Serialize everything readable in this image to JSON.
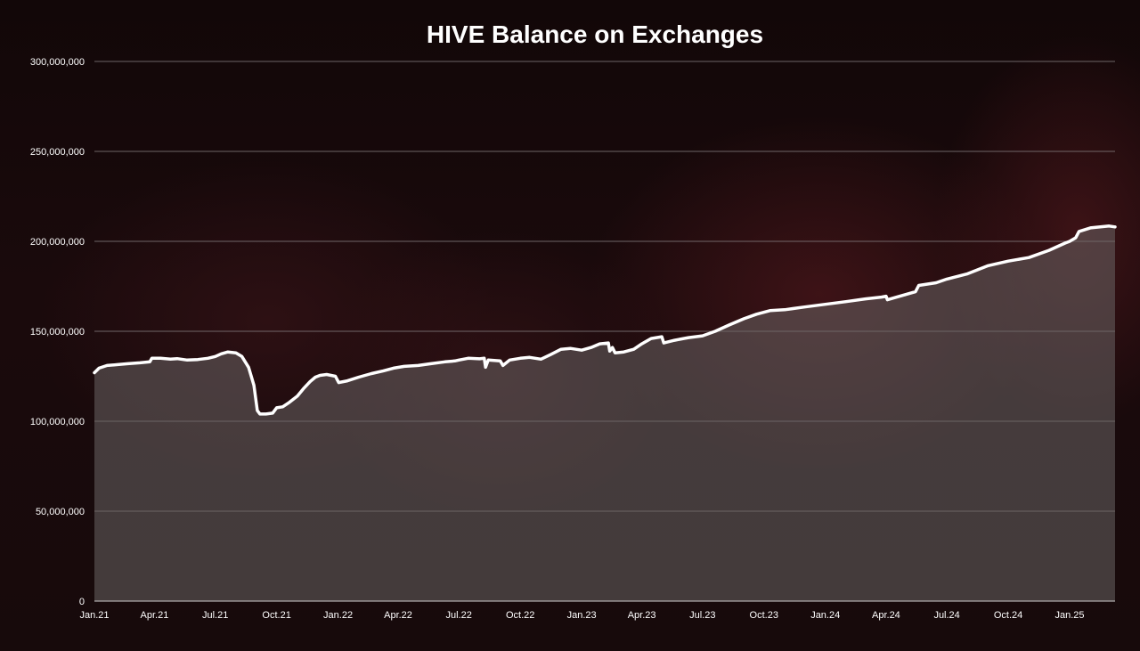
{
  "chart_data": {
    "type": "area",
    "title": "HIVE Balance on Exchanges",
    "xlabel": "",
    "ylabel": "",
    "x_range": [
      "2021-01-01",
      "2025-03-10"
    ],
    "ylim": [
      0,
      300000000
    ],
    "y_ticks": [
      0,
      50000000,
      100000000,
      150000000,
      200000000,
      250000000,
      300000000
    ],
    "y_tick_labels": [
      "0",
      "50,000,000",
      "100,000,000",
      "150,000,000",
      "200,000,000",
      "250,000,000",
      "300,000,000"
    ],
    "x_ticks": [
      "2021-01-01",
      "2021-04-01",
      "2021-07-01",
      "2021-10-01",
      "2022-01-01",
      "2022-04-01",
      "2022-07-01",
      "2022-10-01",
      "2023-01-01",
      "2023-04-01",
      "2023-07-01",
      "2023-10-01",
      "2024-01-01",
      "2024-04-01",
      "2024-07-01",
      "2024-10-01",
      "2025-01-01"
    ],
    "x_tick_labels": [
      "Jan.21",
      "Apr.21",
      "Jul.21",
      "Oct.21",
      "Jan.22",
      "Apr.22",
      "Jul.22",
      "Oct.22",
      "Jan.23",
      "Apr.23",
      "Jul.23",
      "Oct.23",
      "Jan.24",
      "Apr.24",
      "Jul.24",
      "Oct.24",
      "Jan.25"
    ],
    "grid": true,
    "legend": "none",
    "colors": {
      "line": "#ffffff",
      "area": "#6a6465",
      "grid": "#8a8486",
      "background": "#170a0b"
    },
    "series": [
      {
        "x": [
          "2021-01-01",
          "2021-01-08",
          "2021-01-20",
          "2021-02-05",
          "2021-02-20",
          "2021-03-10",
          "2021-03-25",
          "2021-03-28",
          "2021-04-10",
          "2021-04-25",
          "2021-05-05",
          "2021-05-20",
          "2021-06-05",
          "2021-06-20",
          "2021-07-01",
          "2021-07-10",
          "2021-07-20",
          "2021-08-01",
          "2021-08-10",
          "2021-08-20",
          "2021-08-28",
          "2021-09-02",
          "2021-09-06",
          "2021-09-15",
          "2021-09-25",
          "2021-10-01",
          "2021-10-10",
          "2021-10-20",
          "2021-11-01",
          "2021-11-10",
          "2021-11-20",
          "2021-11-28",
          "2021-12-05",
          "2021-12-15",
          "2021-12-28",
          "2022-01-02",
          "2022-01-15",
          "2022-02-01",
          "2022-02-20",
          "2022-03-10",
          "2022-03-25",
          "2022-04-10",
          "2022-05-01",
          "2022-05-20",
          "2022-06-10",
          "2022-06-25",
          "2022-07-01",
          "2022-07-15",
          "2022-08-01",
          "2022-08-08",
          "2022-08-10",
          "2022-08-14",
          "2022-09-01",
          "2022-09-05",
          "2022-09-15",
          "2022-10-01",
          "2022-10-15",
          "2022-11-01",
          "2022-11-15",
          "2022-12-01",
          "2022-12-15",
          "2023-01-01",
          "2023-01-15",
          "2023-01-28",
          "2023-02-10",
          "2023-02-12",
          "2023-02-16",
          "2023-02-20",
          "2023-03-05",
          "2023-03-20",
          "2023-04-01",
          "2023-04-15",
          "2023-05-01",
          "2023-05-04",
          "2023-05-20",
          "2023-06-10",
          "2023-07-01",
          "2023-07-20",
          "2023-08-10",
          "2023-09-01",
          "2023-09-20",
          "2023-10-10",
          "2023-11-01",
          "2023-12-01",
          "2024-01-01",
          "2024-02-01",
          "2024-03-01",
          "2024-03-25",
          "2024-04-01",
          "2024-04-03",
          "2024-05-01",
          "2024-05-15",
          "2024-05-20",
          "2024-06-15",
          "2024-07-01",
          "2024-08-01",
          "2024-09-01",
          "2024-10-01",
          "2024-11-01",
          "2024-12-01",
          "2024-12-25",
          "2025-01-01",
          "2025-01-10",
          "2025-01-15",
          "2025-02-01",
          "2025-03-01",
          "2025-03-10"
        ],
        "values": [
          127000000,
          129500000,
          131000000,
          131500000,
          132000000,
          132500000,
          133000000,
          135000000,
          135000000,
          134500000,
          134800000,
          134000000,
          134300000,
          135000000,
          136000000,
          137500000,
          138500000,
          138000000,
          136000000,
          130000000,
          120000000,
          106000000,
          104000000,
          104000000,
          104500000,
          107500000,
          108000000,
          110500000,
          114000000,
          118000000,
          122000000,
          124500000,
          125500000,
          126000000,
          125000000,
          121500000,
          122500000,
          124500000,
          126500000,
          128000000,
          129500000,
          130500000,
          131000000,
          132000000,
          133000000,
          133500000,
          134000000,
          135000000,
          134700000,
          135000000,
          130000000,
          134000000,
          133500000,
          131000000,
          134000000,
          135000000,
          135500000,
          134500000,
          137000000,
          140000000,
          140500000,
          139500000,
          141000000,
          143000000,
          143500000,
          139000000,
          141000000,
          138000000,
          138500000,
          140000000,
          143000000,
          146000000,
          147000000,
          143500000,
          145000000,
          146500000,
          147500000,
          150000000,
          153500000,
          157000000,
          159500000,
          161500000,
          162000000,
          163500000,
          165000000,
          166500000,
          168000000,
          169000000,
          169500000,
          167500000,
          170500000,
          172000000,
          175500000,
          177000000,
          179000000,
          182000000,
          186500000,
          189000000,
          191000000,
          195000000,
          199000000,
          200000000,
          202000000,
          205500000,
          207500000,
          208500000,
          208000000
        ]
      }
    ]
  }
}
